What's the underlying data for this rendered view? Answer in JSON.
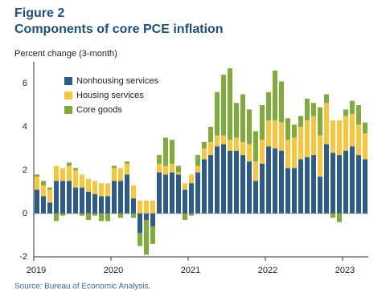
{
  "chart_data": {
    "type": "stacked_bar",
    "figure_label": "Figure 2",
    "title": "Components of core PCE inflation",
    "y_axis_label": "Percent change (3-month)",
    "source": "Source: Bureau of Economic Analysis.",
    "categories": [
      "2019",
      null,
      null,
      null,
      null,
      null,
      null,
      null,
      null,
      null,
      null,
      null,
      "2020",
      null,
      null,
      null,
      null,
      null,
      null,
      null,
      null,
      null,
      null,
      null,
      "2021",
      null,
      null,
      null,
      null,
      null,
      null,
      null,
      null,
      null,
      null,
      null,
      "2022",
      null,
      null,
      null,
      null,
      null,
      null,
      null,
      null,
      null,
      null,
      null,
      "2023",
      null,
      null,
      null
    ],
    "series": [
      {
        "name": "Nonhousing services",
        "color": "#2f5b88",
        "values": [
          1.1,
          0.8,
          0.5,
          1.5,
          1.5,
          1.5,
          1.2,
          1.2,
          1.0,
          0.9,
          0.8,
          0.8,
          1.5,
          1.5,
          1.8,
          0.7,
          -0.9,
          -0.3,
          -0.6,
          1.9,
          1.8,
          1.9,
          1.8,
          1.1,
          1.4,
          1.9,
          2.5,
          2.7,
          3.1,
          3.2,
          2.9,
          2.9,
          2.7,
          2.4,
          1.5,
          2.3,
          3.1,
          3.0,
          2.9,
          2.1,
          2.1,
          2.5,
          2.6,
          2.7,
          1.7,
          3.2,
          2.8,
          2.7,
          2.9,
          3.1,
          2.7,
          2.5
        ]
      },
      {
        "name": "Housing services",
        "color": "#f7c641",
        "values": [
          0.6,
          0.5,
          0.6,
          0.7,
          0.6,
          0.7,
          0.8,
          0.6,
          0.6,
          0.6,
          0.6,
          0.6,
          0.6,
          0.6,
          0.5,
          0.6,
          0.6,
          0.6,
          0.6,
          0.4,
          0.4,
          0.4,
          0.1,
          0.3,
          0.4,
          0.3,
          0.5,
          0.6,
          0.5,
          0.4,
          0.5,
          0.6,
          0.6,
          0.8,
          0.9,
          1.1,
          1.2,
          1.3,
          1.3,
          1.3,
          1.4,
          1.5,
          1.7,
          1.8,
          1.9,
          1.9,
          1.5,
          1.6,
          1.6,
          1.5,
          1.4,
          1.2
        ]
      },
      {
        "name": "Core goods",
        "color": "#80aa3c",
        "values": [
          0.1,
          0.2,
          0.1,
          -0.35,
          -0.1,
          0.15,
          0.1,
          -0.1,
          -0.3,
          -0.1,
          -0.35,
          -0.35,
          0.1,
          -0.2,
          0.1,
          -0.2,
          -0.6,
          -1.6,
          -0.8,
          0.4,
          1.3,
          1.1,
          0.3,
          -0.3,
          -0.1,
          0.5,
          0.3,
          0.7,
          2.0,
          2.8,
          3.3,
          1.6,
          2.2,
          1.6,
          1.4,
          1.6,
          1.3,
          2.3,
          1.9,
          1.0,
          0.6,
          0.5,
          1.0,
          0.6,
          1.3,
          0.4,
          -0.2,
          -0.4,
          0.3,
          0.6,
          0.9,
          0.5
        ]
      }
    ],
    "ylim": [
      -2,
      7
    ],
    "yticks": [
      -2,
      0,
      2,
      4,
      6
    ],
    "grid": false
  }
}
